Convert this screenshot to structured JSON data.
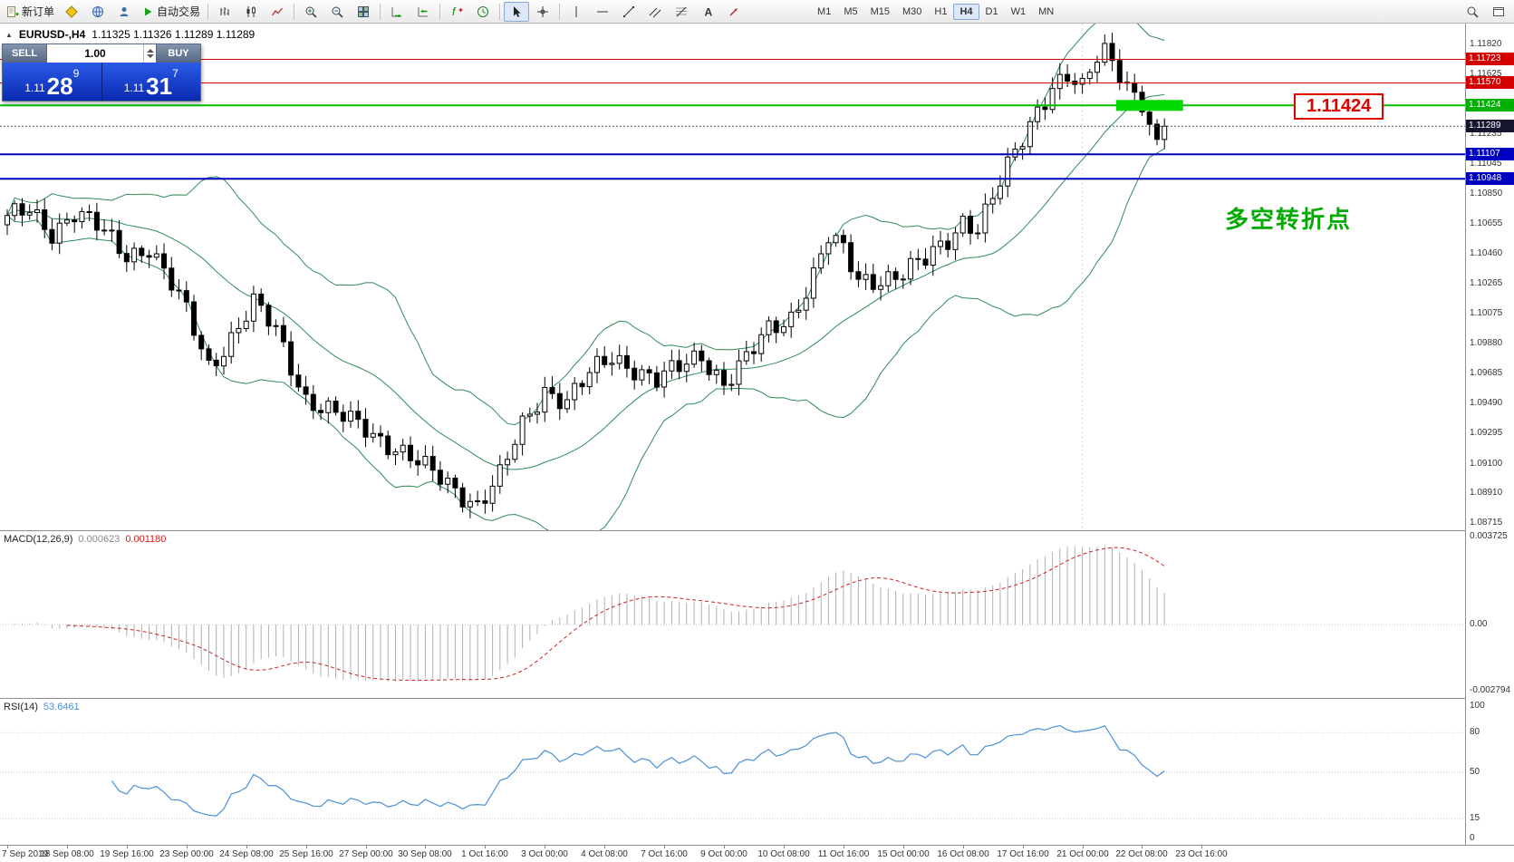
{
  "toolbar": {
    "new_order_label": "新订单",
    "autotrading_label": "自动交易",
    "timeframes": [
      "M1",
      "M5",
      "M15",
      "M30",
      "H1",
      "H4",
      "D1",
      "W1",
      "MN"
    ],
    "active_timeframe": "H4"
  },
  "chart_header": {
    "symbol_title": "EURUSD-,H4",
    "ohlc": "1.11325 1.11326 1.11289 1.11289"
  },
  "trade_panel": {
    "sell_label": "SELL",
    "buy_label": "BUY",
    "volume": "1.00",
    "bid": {
      "prefix": "1.11",
      "big": "28",
      "sup": "9"
    },
    "ask": {
      "prefix": "1.11",
      "big": "31",
      "sup": "7"
    }
  },
  "annotations": {
    "price_label": "1.11424",
    "turning_point": "多空转折点"
  },
  "macd_panel": {
    "name": "MACD(12,26,9)",
    "value_main": "0.000623",
    "value_signal": "0.001180",
    "scale": [
      "0.003725",
      "0.00",
      "-0.002794"
    ]
  },
  "rsi_panel": {
    "name": "RSI(14)",
    "value": "53.6461",
    "levels": [
      "100",
      "80",
      "50",
      "15",
      "0"
    ]
  },
  "price_axis": {
    "ticks": [
      "1.11820",
      "1.11625",
      "1.11235",
      "1.11045",
      "1.10850",
      "1.10655",
      "1.10460",
      "1.10265",
      "1.10075",
      "1.09880",
      "1.09685",
      "1.09490",
      "1.09295",
      "1.09100",
      "1.08910",
      "1.08715"
    ],
    "badges": [
      {
        "text": "1.11723",
        "price": 1.11723,
        "color": "#d40000"
      },
      {
        "text": "1.11570",
        "price": 1.1157,
        "color": "#d40000"
      },
      {
        "text": "1.11424",
        "price": 1.11424,
        "color": "#00b000"
      },
      {
        "text": "1.11289",
        "price": 1.11289,
        "color": "#15152e"
      },
      {
        "text": "1.11107",
        "price": 1.11107,
        "color": "#0000c0"
      },
      {
        "text": "1.10948",
        "price": 1.10948,
        "color": "#0000c0"
      }
    ]
  },
  "time_axis": [
    "7 Sep 2019",
    "18 Sep 08:00",
    "19 Sep 16:00",
    "23 Sep 00:00",
    "24 Sep 08:00",
    "25 Sep 16:00",
    "27 Sep 00:00",
    "30 Sep 08:00",
    "1 Oct 16:00",
    "3 Oct 00:00",
    "4 Oct 08:00",
    "7 Oct 16:00",
    "9 Oct 00:00",
    "10 Oct 08:00",
    "11 Oct 16:00",
    "15 Oct 00:00",
    "16 Oct 08:00",
    "17 Oct 16:00",
    "21 Oct 00:00",
    "22 Oct 08:00",
    "23 Oct 16:00"
  ],
  "chart_data": {
    "type": "candlestick",
    "symbol": "EURUSD",
    "timeframe": "H4",
    "bars": 156,
    "last_close": 1.11289,
    "price_range": [
      1.08668,
      1.11955
    ],
    "close_anchors": [
      [
        0,
        1.1068
      ],
      [
        3,
        1.1074
      ],
      [
        6,
        1.1061
      ],
      [
        9,
        1.1073
      ],
      [
        12,
        1.1063
      ],
      [
        16,
        1.1046
      ],
      [
        19,
        1.1051
      ],
      [
        24,
        1.1008
      ],
      [
        27,
        1.0974
      ],
      [
        30,
        1.0992
      ],
      [
        33,
        1.1013
      ],
      [
        36,
        1.0996
      ],
      [
        40,
        1.0953
      ],
      [
        44,
        1.0941
      ],
      [
        48,
        1.0933
      ],
      [
        52,
        1.0921
      ],
      [
        56,
        1.0906
      ],
      [
        60,
        1.0894
      ],
      [
        63,
        1.0884
      ],
      [
        66,
        1.0901
      ],
      [
        69,
        1.0934
      ],
      [
        72,
        1.0959
      ],
      [
        75,
        1.0951
      ],
      [
        78,
        1.0967
      ],
      [
        81,
        1.0979
      ],
      [
        84,
        1.0973
      ],
      [
        87,
        1.0964
      ],
      [
        90,
        1.0971
      ],
      [
        93,
        1.0981
      ],
      [
        96,
        1.0963
      ],
      [
        99,
        1.0977
      ],
      [
        102,
        1.0996
      ],
      [
        105,
        1.1006
      ],
      [
        108,
        1.1033
      ],
      [
        110,
        1.1056
      ],
      [
        112,
        1.1047
      ],
      [
        114,
        1.1029
      ],
      [
        117,
        1.1031
      ],
      [
        120,
        1.1033
      ],
      [
        123,
        1.1041
      ],
      [
        126,
        1.1056
      ],
      [
        128,
        1.1069
      ],
      [
        130,
        1.1063
      ],
      [
        132,
        1.1081
      ],
      [
        134,
        1.1101
      ],
      [
        136,
        1.1121
      ],
      [
        138,
        1.1141
      ],
      [
        140,
        1.1156
      ],
      [
        142,
        1.1161
      ],
      [
        144,
        1.1151
      ],
      [
        146,
        1.1173
      ],
      [
        147,
        1.1178
      ],
      [
        149,
        1.1166
      ],
      [
        151,
        1.115
      ],
      [
        153,
        1.113
      ],
      [
        154,
        1.1118
      ],
      [
        155,
        1.11289
      ]
    ],
    "bollinger": {
      "period": 20,
      "deviation": 2,
      "color": "#2e8b57"
    },
    "levels": [
      {
        "price": 1.11723,
        "color": "#d40000",
        "width": 1,
        "style": "solid"
      },
      {
        "price": 1.1157,
        "color": "#d40000",
        "width": 1,
        "style": "solid"
      },
      {
        "price": 1.11424,
        "color": "#00c000",
        "width": 2,
        "style": "solid"
      },
      {
        "price": 1.11289,
        "color": "#555555",
        "width": 1,
        "style": "dotted"
      },
      {
        "price": 1.11107,
        "color": "#0000c0",
        "width": 2,
        "style": "solid"
      },
      {
        "price": 1.10948,
        "color": "#0000c0",
        "width": 2,
        "style": "solid"
      }
    ],
    "highlight_rect": {
      "from_bar": 149,
      "to_bar": 157,
      "price": 1.11424,
      "half_height": 6,
      "color": "#00d800"
    },
    "week_separator_bar": 144,
    "macd": {
      "fast": 12,
      "slow": 26,
      "signal": 9,
      "ylim": [
        -0.0031,
        0.00395
      ],
      "hist_color": "#b0b0b0",
      "signal_color": "#d02020"
    },
    "rsi": {
      "period": 14,
      "color": "#4a90d8",
      "level_lines": [
        80,
        50,
        15
      ]
    }
  }
}
